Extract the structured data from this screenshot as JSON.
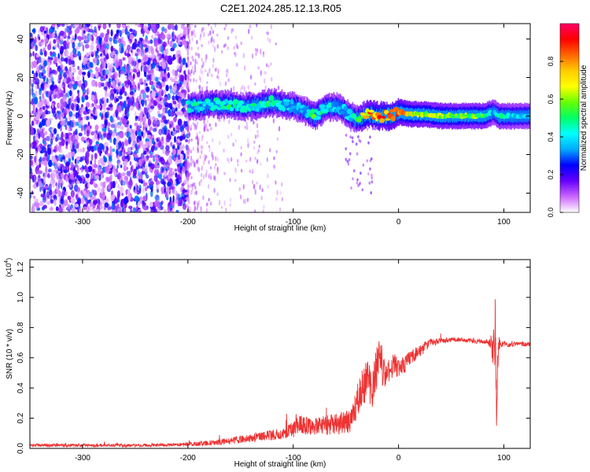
{
  "title": "C2E1.2024.285.12.13.R05",
  "colors": {
    "axis": "#000000",
    "snr_line": "#ee3333",
    "colorbar": [
      "#ffffff",
      "#cc66ff",
      "#6600ff",
      "#0000ff",
      "#00aaff",
      "#00ffff",
      "#00ff66",
      "#66ff00",
      "#ffff00",
      "#ffcc00",
      "#ff6600",
      "#ff0000",
      "#ff0066"
    ]
  },
  "chart_data": [
    {
      "type": "heatmap",
      "xlabel": "Height of straight line (km)",
      "ylabel": "Frequency (Hz)",
      "xlim": [
        -350,
        125
      ],
      "ylim": [
        -50,
        48
      ],
      "xticks": [
        -300,
        -200,
        -100,
        0,
        100
      ],
      "yticks": [
        -40,
        -20,
        0,
        20,
        40
      ],
      "colorbar": {
        "label": "Normalized spectral amplitude",
        "range": [
          0,
          1
        ],
        "ticks": [
          "0.0",
          "0.2",
          "0.4",
          "0.6",
          "0.8"
        ]
      },
      "noise_region_x": [
        -350,
        -200
      ],
      "ridge": {
        "x": [
          -200,
          -190,
          -180,
          -170,
          -160,
          -150,
          -140,
          -130,
          -120,
          -110,
          -100,
          -90,
          -80,
          -70,
          -60,
          -50,
          -40,
          -35,
          -30,
          -20,
          -10,
          0,
          10,
          20,
          40,
          60,
          80,
          85,
          90,
          95,
          100,
          110,
          125
        ],
        "y": [
          5,
          5,
          6,
          6,
          6,
          5,
          5,
          6,
          7,
          6,
          5,
          3,
          0,
          4,
          5,
          2,
          -2,
          0,
          1,
          0,
          0,
          2,
          1,
          1,
          0,
          0,
          0,
          1,
          2,
          0,
          0,
          0,
          0
        ],
        "amplitude": [
          0.5,
          0.45,
          0.45,
          0.45,
          0.5,
          0.45,
          0.45,
          0.5,
          0.5,
          0.4,
          0.4,
          0.35,
          0.55,
          0.45,
          0.4,
          0.4,
          0.45,
          0.7,
          0.8,
          0.85,
          0.9,
          0.85,
          0.7,
          0.65,
          0.65,
          0.6,
          0.6,
          0.55,
          0.3,
          0.5,
          0.45,
          0.4,
          0.4
        ]
      }
    },
    {
      "type": "line",
      "xlabel": "Height of straight line (km)",
      "ylabel": "SNR (10 * v/v)",
      "y_multiplier": "(x10",
      "y_multiplier_exp": "4",
      "y_multiplier_close": ")",
      "xlim": [
        -350,
        125
      ],
      "ylim": [
        0,
        1.25
      ],
      "xticks": [
        -300,
        -200,
        -100,
        0,
        100
      ],
      "yticks": [
        "0.0",
        "0.2",
        "0.4",
        "0.6",
        "0.8",
        "1.0",
        "1.2"
      ],
      "series": [
        {
          "x": [
            -350,
            -300,
            -250,
            -210,
            -190,
            -170,
            -150,
            -130,
            -110,
            -100,
            -95,
            -80,
            -60,
            -45,
            -40,
            -35,
            -30,
            -25,
            -20,
            -17,
            -15,
            -10,
            -5,
            0,
            5,
            10,
            20,
            30,
            40,
            50,
            60,
            70,
            80,
            85,
            88,
            90,
            92,
            93,
            94,
            95,
            97,
            100,
            105,
            110,
            125
          ],
          "values": [
            0.02,
            0.02,
            0.02,
            0.025,
            0.03,
            0.04,
            0.06,
            0.08,
            0.1,
            0.12,
            0.16,
            0.14,
            0.16,
            0.18,
            0.28,
            0.4,
            0.45,
            0.4,
            0.55,
            0.65,
            0.5,
            0.5,
            0.56,
            0.53,
            0.55,
            0.6,
            0.64,
            0.7,
            0.71,
            0.72,
            0.72,
            0.71,
            0.71,
            0.7,
            0.7,
            0.6,
            0.85,
            0.2,
            0.55,
            0.7,
            0.68,
            0.7,
            0.68,
            0.69,
            0.69
          ],
          "noise": [
            0.01,
            0.01,
            0.01,
            0.01,
            0.015,
            0.02,
            0.025,
            0.03,
            0.04,
            0.05,
            0.06,
            0.06,
            0.07,
            0.08,
            0.12,
            0.12,
            0.14,
            0.14,
            0.14,
            0.12,
            0.1,
            0.08,
            0.08,
            0.06,
            0.06,
            0.05,
            0.04,
            0.03,
            0.02,
            0.015,
            0.015,
            0.015,
            0.015,
            0.02,
            0.05,
            0.15,
            0.25,
            0.1,
            0.15,
            0.05,
            0.02,
            0.015,
            0.015,
            0.015,
            0.015
          ]
        }
      ]
    }
  ]
}
